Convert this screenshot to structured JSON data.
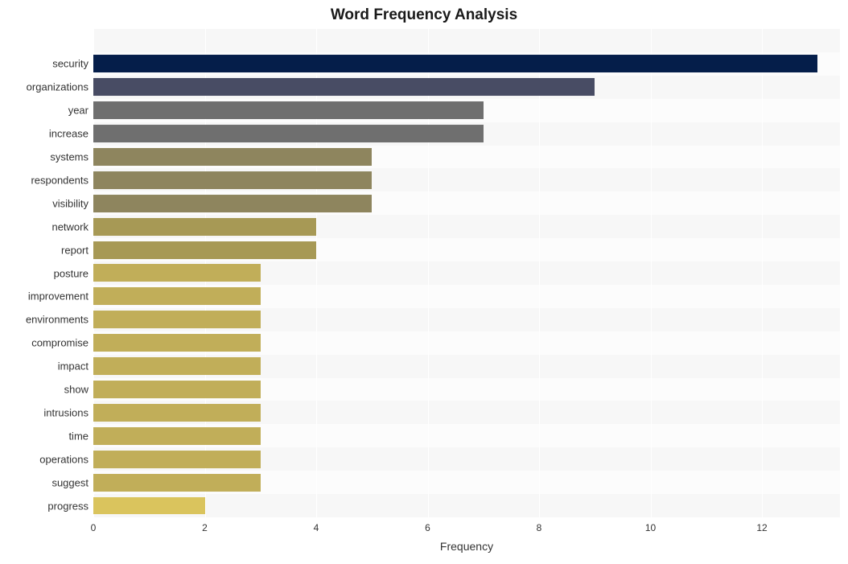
{
  "chart": {
    "type": "bar-horizontal",
    "title": "Word Frequency Analysis",
    "title_fontsize": 19,
    "title_fontweight": "bold",
    "title_color": "#1a1a1a",
    "xlabel": "Frequency",
    "xlabel_fontsize": 14,
    "xlabel_color": "#333333",
    "ylabel_fontsize": 13,
    "ylabel_color": "#333333",
    "tick_fontsize": 12,
    "tick_color": "#333333",
    "background_color": "#ffffff",
    "plot_stripe_colors": [
      "#f7f7f7",
      "#fcfcfc"
    ],
    "grid_color": "#ffffff",
    "xlim": [
      0,
      13.4
    ],
    "xticks": [
      0,
      2,
      4,
      6,
      8,
      10,
      12
    ],
    "bar_rel_height": 0.76,
    "words": [
      {
        "label": "security",
        "value": 13,
        "color": "#051e4a"
      },
      {
        "label": "organizations",
        "value": 9,
        "color": "#484c64"
      },
      {
        "label": "year",
        "value": 7,
        "color": "#6f6f6f"
      },
      {
        "label": "increase",
        "value": 7,
        "color": "#6f6f6f"
      },
      {
        "label": "systems",
        "value": 5,
        "color": "#8e855e"
      },
      {
        "label": "respondents",
        "value": 5,
        "color": "#8e855e"
      },
      {
        "label": "visibility",
        "value": 5,
        "color": "#8e855e"
      },
      {
        "label": "network",
        "value": 4,
        "color": "#a79955"
      },
      {
        "label": "report",
        "value": 4,
        "color": "#a79955"
      },
      {
        "label": "posture",
        "value": 3,
        "color": "#c1ae59"
      },
      {
        "label": "improvement",
        "value": 3,
        "color": "#c1ae59"
      },
      {
        "label": "environments",
        "value": 3,
        "color": "#c1ae59"
      },
      {
        "label": "compromise",
        "value": 3,
        "color": "#c1ae59"
      },
      {
        "label": "impact",
        "value": 3,
        "color": "#c1ae59"
      },
      {
        "label": "show",
        "value": 3,
        "color": "#c1ae59"
      },
      {
        "label": "intrusions",
        "value": 3,
        "color": "#c1ae59"
      },
      {
        "label": "time",
        "value": 3,
        "color": "#c1ae59"
      },
      {
        "label": "operations",
        "value": 3,
        "color": "#c1ae59"
      },
      {
        "label": "suggest",
        "value": 3,
        "color": "#c1ae59"
      },
      {
        "label": "progress",
        "value": 2,
        "color": "#dac45d"
      }
    ],
    "row_count_including_blank_last": 21
  }
}
